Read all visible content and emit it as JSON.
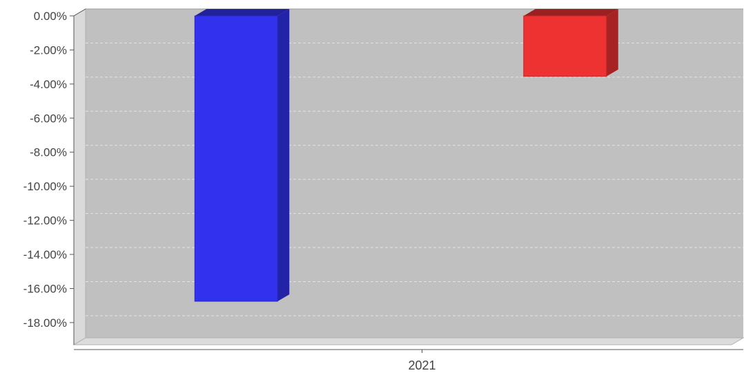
{
  "chart_data": {
    "type": "bar",
    "categories": [
      "2021"
    ],
    "series": [
      {
        "values": [
          -16.75
        ]
      },
      {
        "values": [
          -3.55
        ]
      }
    ],
    "ylim": [
      -19.3,
      0
    ],
    "yticks": [
      0,
      -2,
      -4,
      -6,
      -8,
      -10,
      -12,
      -14,
      -16,
      -18
    ],
    "ytick_labels": [
      "0.00%",
      "-2.00%",
      "-4.00%",
      "-6.00%",
      "-8.00%",
      "-10.00%",
      "-12.00%",
      "-14.00%",
      "-16.00%",
      "-18.00%"
    ],
    "grid": true,
    "style": "3d",
    "colors": {
      "series": [
        "#3232ee",
        "#ee3232"
      ],
      "plot_background": "#c0c0c0",
      "grid": "#e4e4e4"
    }
  }
}
